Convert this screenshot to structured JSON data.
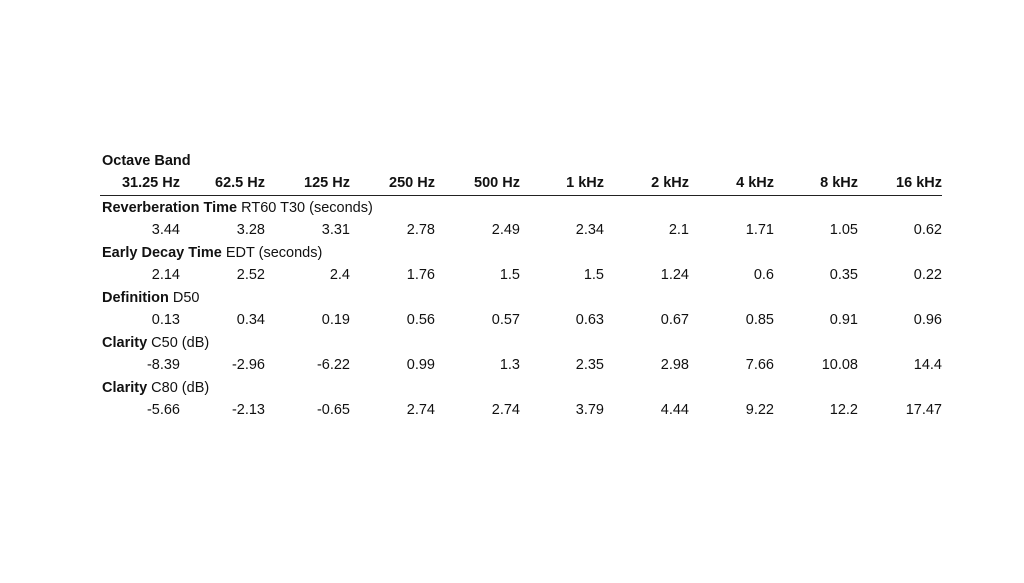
{
  "title": "Octave Band",
  "columns": [
    "31.25 Hz",
    "62.5 Hz",
    "125 Hz",
    "250 Hz",
    "500 Hz",
    "1 kHz",
    "2 kHz",
    "4 kHz",
    "8 kHz",
    "16 kHz"
  ],
  "sections": [
    {
      "name": "Reverberation Time",
      "detail": " RT60 T30 (seconds)",
      "values": [
        "3.44",
        "3.28",
        "3.31",
        "2.78",
        "2.49",
        "2.34",
        "2.1",
        "1.71",
        "1.05",
        "0.62"
      ]
    },
    {
      "name": "Early Decay Time",
      "detail": " EDT (seconds)",
      "values": [
        "2.14",
        "2.52",
        "2.4",
        "1.76",
        "1.5",
        "1.5",
        "1.24",
        "0.6",
        "0.35",
        "0.22"
      ]
    },
    {
      "name": "Definition",
      "detail": " D50",
      "values": [
        "0.13",
        "0.34",
        "0.19",
        "0.56",
        "0.57",
        "0.63",
        "0.67",
        "0.85",
        "0.91",
        "0.96"
      ]
    },
    {
      "name": "Clarity",
      "detail": " C50 (dB)",
      "values": [
        "-8.39",
        "-2.96",
        "-6.22",
        "0.99",
        "1.3",
        "2.35",
        "2.98",
        "7.66",
        "10.08",
        "14.4"
      ]
    },
    {
      "name": "Clarity",
      "detail": " C80 (dB)",
      "values": [
        "-5.66",
        "-2.13",
        "-0.65",
        "2.74",
        "2.74",
        "3.79",
        "4.44",
        "9.22",
        "12.2",
        "17.47"
      ]
    }
  ]
}
